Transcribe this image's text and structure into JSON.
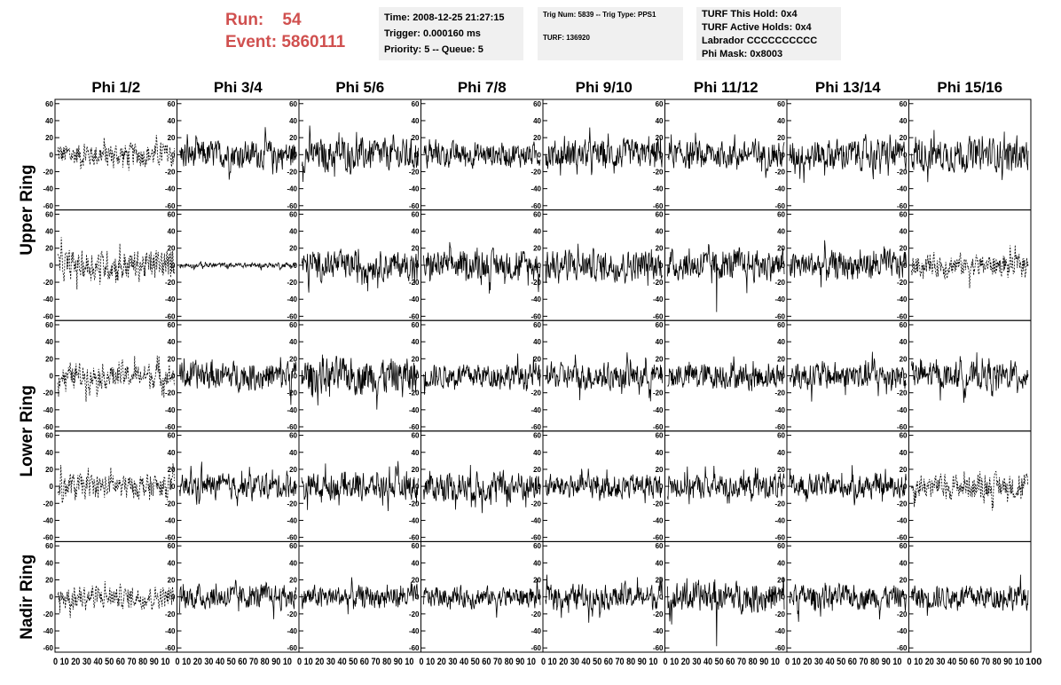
{
  "header": {
    "run_label": "Run:",
    "run_value": "54",
    "event_label": "Event:",
    "event_value": "5860111",
    "panel1": [
      "Time: 2008-12-25 21:27:15",
      "Trigger: 0.000160 ms",
      "Priority: 5 -- Queue: 5"
    ],
    "panel2": [
      "Trig Num: 5839 -- Trig Type: PPS1",
      "TURF: 136920"
    ],
    "panel3": [
      "TURF This Hold: 0x4",
      "TURF Active Holds: 0x4",
      "Labrador CCCCCCCCCC",
      "Phi Mask: 0x8003"
    ]
  },
  "colors": {
    "run_text": "#d0504f",
    "info_bg": "#f0f0f0",
    "trace": "#000000"
  },
  "chart_data": {
    "type": "line",
    "columns": [
      "Phi 1/2",
      "Phi 3/4",
      "Phi 5/6",
      "Phi 7/8",
      "Phi 9/10",
      "Phi 11/12",
      "Phi 13/14",
      "Phi 15/16"
    ],
    "rows": [
      "Upper Ring",
      "Lower Ring",
      "Nadir Ring"
    ],
    "xlim": [
      0,
      100
    ],
    "ylim": [
      -65,
      65
    ],
    "yticks": [
      -60,
      -40,
      -20,
      0,
      20,
      40,
      60
    ],
    "xtick_label_strip": "0 10 20 30 40 50 60 70 80 90 10",
    "xtick_label_last": "100",
    "n_samples": 260,
    "panels": [
      [
        {
          "a": 12,
          "d": true
        },
        {
          "a": 14
        },
        {
          "a": 16
        },
        {
          "a": 12
        },
        {
          "a": 14
        },
        {
          "a": 13
        },
        {
          "a": 15
        },
        {
          "a": 16
        }
      ],
      [
        {
          "a": 15,
          "d": true
        },
        {
          "a": 2.5
        },
        {
          "a": 14
        },
        {
          "a": 14
        },
        {
          "a": 15
        },
        {
          "a": 15,
          "spike": -55
        },
        {
          "a": 14
        },
        {
          "a": 11,
          "d": true
        }
      ],
      [
        {
          "a": 12,
          "d": true
        },
        {
          "a": 14
        },
        {
          "a": 18
        },
        {
          "a": 12
        },
        {
          "a": 13
        },
        {
          "a": 13
        },
        {
          "a": 14
        },
        {
          "a": 13
        }
      ],
      [
        {
          "a": 12,
          "d": true
        },
        {
          "a": 12
        },
        {
          "a": 13
        },
        {
          "a": 15
        },
        {
          "a": 12
        },
        {
          "a": 12
        },
        {
          "a": 12
        },
        {
          "a": 12,
          "d": true
        }
      ],
      [
        {
          "a": 11,
          "d": true
        },
        {
          "a": 12
        },
        {
          "a": 11
        },
        {
          "a": 10
        },
        {
          "a": 12
        },
        {
          "a": 15,
          "spike": -58
        },
        {
          "a": 12
        },
        {
          "a": 12
        }
      ]
    ]
  }
}
